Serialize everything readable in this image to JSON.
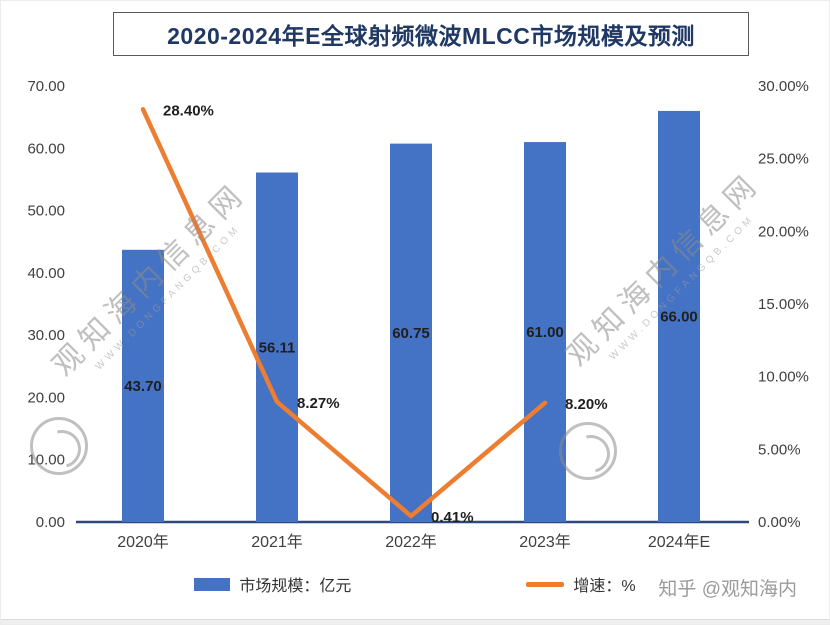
{
  "title": "2020-2024年E全球射频微波MLCC市场规模及预测",
  "chart_data": {
    "type": "bar",
    "combo": "bar+line",
    "categories": [
      "2020年",
      "2021年",
      "2022年",
      "2023年",
      "2024年E"
    ],
    "series": [
      {
        "name": "市场规模：亿元",
        "type": "bar",
        "axis": "left",
        "color": "#4472C4",
        "values": [
          43.7,
          56.11,
          60.75,
          61.0,
          66.0
        ],
        "labels": [
          "43.70",
          "56.11",
          "60.75",
          "61.00",
          "66.00"
        ]
      },
      {
        "name": "增速：%",
        "type": "line",
        "axis": "right",
        "color": "#ED7D31",
        "values": [
          28.4,
          8.27,
          0.41,
          8.2,
          null
        ],
        "labels": [
          "28.40%",
          "8.27%",
          "0.41%",
          "8.20%",
          ""
        ]
      }
    ],
    "left_axis": {
      "min": 0,
      "max": 70,
      "step": 10
    },
    "right_axis": {
      "min": 0,
      "max": 30,
      "step": 5
    },
    "grid": false,
    "legend_position": "bottom"
  },
  "legend": {
    "items": [
      {
        "label": "市场规模：亿元",
        "color": "#4472C4",
        "marker": "bar"
      },
      {
        "label": "增速：%",
        "color": "#ED7D31",
        "marker": "line"
      }
    ]
  },
  "watermark": {
    "brand": "观知海内信息网",
    "url_text": "WWW.DONGFANGQB.COM"
  },
  "credit": "知乎 @观知海内",
  "colors": {
    "bar": "#4472C4",
    "line": "#ED7D31",
    "title": "#1F3864",
    "axis_line": "#2E4A7C",
    "tick_text": "#3F3F3F",
    "data_label": "#1F1F1F"
  }
}
